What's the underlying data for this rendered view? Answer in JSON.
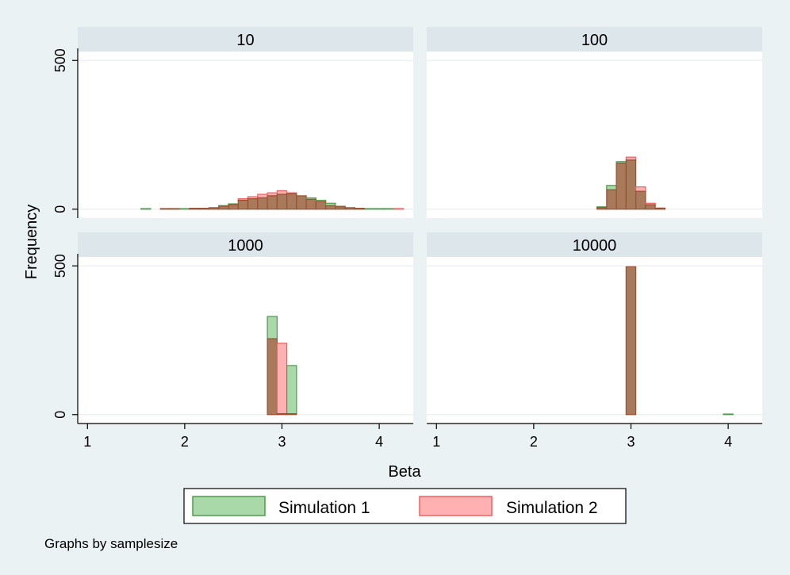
{
  "chart_data": {
    "type": "bar",
    "layout": "2x2 facets",
    "xlabel": "Beta",
    "ylabel": "Frequency",
    "xlim": [
      0.9,
      4.35
    ],
    "ylim": [
      -30,
      530
    ],
    "x_ticks": [
      1,
      2,
      3,
      4
    ],
    "y_ticks": [
      0,
      500
    ],
    "bin_width": 0.1,
    "legend": {
      "position": "bottom",
      "entries": [
        "Simulation 1",
        "Simulation 2"
      ]
    },
    "note": "Graphs by samplesize",
    "colors": {
      "s1_fill": "#a9d8a9",
      "s1_edge": "#4f9b4f",
      "s2_fill": "#ffb0b0",
      "s2_edge": "#ee6060",
      "overlap_fill": "#a8795a",
      "overlap_edge": "#9a5030"
    },
    "panels": [
      {
        "title": "10",
        "series": [
          {
            "name": "Simulation 1",
            "x": [
              1.6,
              1.8,
              1.9,
              2.0,
              2.1,
              2.2,
              2.3,
              2.4,
              2.5,
              2.6,
              2.7,
              2.8,
              2.9,
              3.0,
              3.1,
              3.2,
              3.3,
              3.4,
              3.5,
              3.6,
              3.7,
              3.8,
              3.9,
              4.0,
              4.1
            ],
            "values": [
              2,
              2,
              2,
              2,
              3,
              3,
              5,
              12,
              18,
              30,
              35,
              38,
              45,
              50,
              52,
              45,
              38,
              30,
              20,
              10,
              5,
              3,
              2,
              2,
              2
            ]
          },
          {
            "name": "Simulation 2",
            "x": [
              1.8,
              1.9,
              2.1,
              2.2,
              2.3,
              2.4,
              2.5,
              2.6,
              2.7,
              2.8,
              2.9,
              3.0,
              3.1,
              3.2,
              3.3,
              3.4,
              3.5,
              3.6,
              3.7,
              3.8,
              4.2
            ],
            "values": [
              2,
              2,
              3,
              3,
              5,
              10,
              15,
              35,
              42,
              50,
              55,
              62,
              55,
              45,
              33,
              25,
              12,
              8,
              5,
              3,
              2
            ]
          }
        ]
      },
      {
        "title": "100",
        "series": [
          {
            "name": "Simulation 1",
            "x": [
              2.7,
              2.8,
              2.9,
              3.0,
              3.1,
              3.2,
              3.3
            ],
            "values": [
              8,
              80,
              160,
              165,
              60,
              15,
              3
            ]
          },
          {
            "name": "Simulation 2",
            "x": [
              2.7,
              2.8,
              2.9,
              3.0,
              3.1,
              3.2,
              3.3
            ],
            "values": [
              5,
              65,
              155,
              175,
              75,
              20,
              4
            ]
          }
        ]
      },
      {
        "title": "1000",
        "series": [
          {
            "name": "Simulation 1",
            "x": [
              2.9,
              3.0,
              3.1
            ],
            "values": [
              330,
              3,
              165
            ]
          },
          {
            "name": "Simulation 2",
            "x": [
              2.9,
              3.0,
              3.1
            ],
            "values": [
              255,
              240,
              3
            ]
          }
        ]
      },
      {
        "title": "10000",
        "series": [
          {
            "name": "Simulation 1",
            "x": [
              3.0,
              4.0
            ],
            "values": [
              497,
              2
            ]
          },
          {
            "name": "Simulation 2",
            "x": [
              3.0
            ],
            "values": [
              497
            ]
          }
        ]
      }
    ]
  }
}
